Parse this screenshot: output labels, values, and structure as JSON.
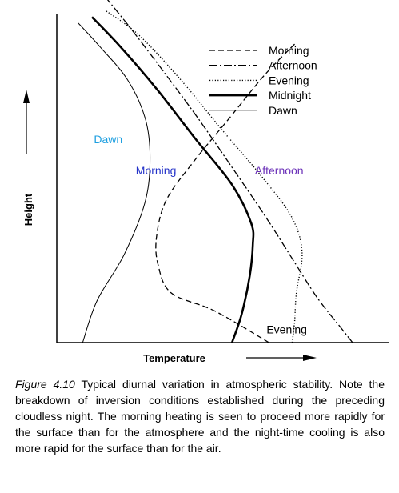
{
  "chart_data": {
    "type": "line",
    "title": "",
    "xlabel": "Temperature",
    "ylabel": "Height",
    "xlim": [
      0,
      100
    ],
    "ylim": [
      0,
      100
    ],
    "grid": false,
    "legend_position": "top-right",
    "series": [
      {
        "name": "Morning",
        "style": "dashed",
        "color": "#000000",
        "x": [
          70.6,
          52.6,
          38.1,
          33.7,
          33.2,
          36.4,
          45.5,
          57.7,
          69.1,
          79.5
        ],
        "y": [
          0,
          9.6,
          15.1,
          23.7,
          32.3,
          43.4,
          55.1,
          68.7,
          81.5,
          91.3
        ]
      },
      {
        "name": "Afternoon",
        "style": "dashdot",
        "color": "#000000",
        "x": [
          98.4,
          94.7,
          86.7,
          78.6,
          69.5,
          58.3,
          47.1,
          35.9,
          24.6,
          16.6
        ],
        "y": [
          0,
          4.3,
          13.6,
          25.2,
          38.3,
          53.4,
          68.2,
          82.1,
          95.7,
          104.8
        ]
      },
      {
        "name": "Evening",
        "style": "dotted",
        "color": "#000000",
        "x": [
          78.3,
          79.1,
          79.7,
          81.6,
          78.1,
          67.9,
          54.8,
          41.2,
          27.3,
          16.0
        ],
        "y": [
          0,
          6.0,
          15.1,
          27.5,
          38.3,
          50.9,
          65.0,
          80.1,
          93.7,
          101.3
        ]
      },
      {
        "name": "Midnight",
        "style": "solid-thick",
        "color": "#000000",
        "x": [
          58.3,
          61.5,
          64.2,
          65.2,
          64.7,
          58.3,
          46.0,
          33.2,
          20.9,
          11.7
        ],
        "y": [
          0,
          8.6,
          20.4,
          29.7,
          36.3,
          48.1,
          62.2,
          77.3,
          90.4,
          99.2
        ]
      },
      {
        "name": "Dawn",
        "style": "solid-thin",
        "color": "#000000",
        "x": [
          8.6,
          13.4,
          22.5,
          29.4,
          31.0,
          29.4,
          23.5,
          14.4,
          7.0
        ],
        "y": [
          0,
          12.8,
          27.0,
          42.9,
          56.4,
          68.4,
          80.1,
          90.1,
          97.5
        ]
      }
    ],
    "annotations": [
      {
        "text": "Dawn",
        "x": 17.1,
        "y": 62.0,
        "color": "#1e9fe0"
      },
      {
        "text": "Morning",
        "x": 33.0,
        "y": 52.4,
        "color": "#2433c9"
      },
      {
        "text": "Afternoon",
        "x": 74.0,
        "y": 52.4,
        "color": "#6a2fb8"
      },
      {
        "text": "Evening",
        "x": 76.5,
        "y": 4.0,
        "color": "#000000"
      }
    ]
  },
  "caption": {
    "figure_number": "Figure 4.10",
    "text": " Typical diurnal variation in atmospheric stability. Note the breakdown of inversion conditions established during the preceding cloudless night. The morning heating is seen to proceed more rapidly for the surface than for the atmosphere and the night-time cooling is also more rapid for the surface than for the air."
  }
}
